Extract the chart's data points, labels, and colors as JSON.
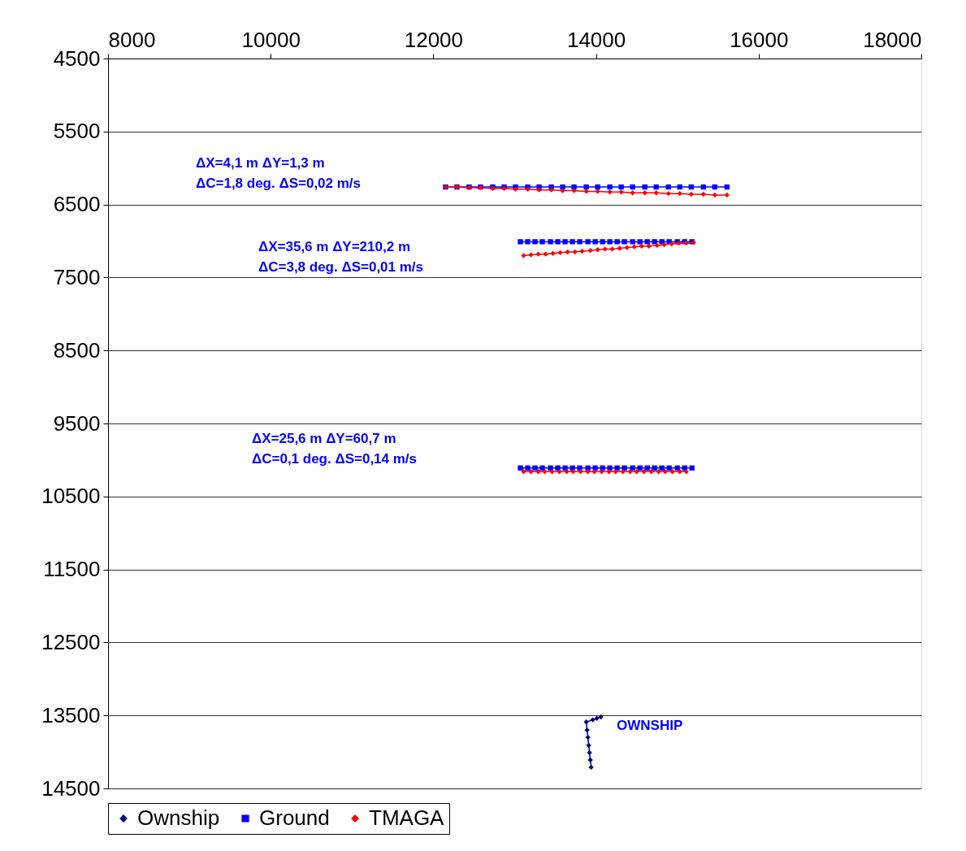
{
  "chart_data": {
    "type": "line",
    "xlim": [
      8000,
      18000
    ],
    "xticks": [
      8000,
      10000,
      12000,
      14000,
      16000,
      18000
    ],
    "ylim": [
      14500,
      4500
    ],
    "yticks": [
      4500,
      5500,
      6500,
      7500,
      8500,
      9500,
      10500,
      11500,
      12500,
      13500,
      14500
    ],
    "grid": "y",
    "legend": "bottom",
    "line_style": "solid",
    "series": [
      {
        "name": "Ownship",
        "color": "#000080",
        "marker": "diamond",
        "x": [
          13940,
          13930,
          13920,
          13910,
          13900,
          13890,
          13880,
          13960,
          14010,
          14060
        ],
        "values": [
          14210,
          14110,
          14010,
          13910,
          13800,
          13700,
          13590,
          13560,
          13540,
          13520
        ]
      },
      {
        "name": "Ground",
        "color": "#0000ff",
        "marker": "square",
        "x": [
          12150,
          12290,
          12440,
          12580,
          12730,
          12870,
          13010,
          13160,
          13300,
          13450,
          13590,
          13730,
          13880,
          14020,
          14170,
          14310,
          14450,
          14600,
          14740,
          14890,
          15030,
          15170,
          15320,
          15460,
          15610,
          null,
          13070,
          13160,
          13250,
          13340,
          13440,
          13530,
          13620,
          13710,
          13800,
          13900,
          13990,
          14080,
          14170,
          14260,
          14350,
          14450,
          14540,
          14630,
          14720,
          14810,
          14900,
          15000,
          15090,
          15180,
          null,
          13070,
          13160,
          13250,
          13340,
          13440,
          13530,
          13620,
          13710,
          13800,
          13900,
          13990,
          14080,
          14170,
          14260,
          14350,
          14450,
          14540,
          14630,
          14720,
          14810,
          14900,
          15000,
          15090,
          15180
        ],
        "values": [
          6260,
          6260,
          6260,
          6260,
          6260,
          6260,
          6260,
          6260,
          6260,
          6260,
          6260,
          6260,
          6260,
          6260,
          6260,
          6260,
          6260,
          6260,
          6260,
          6260,
          6260,
          6260,
          6260,
          6260,
          6260,
          null,
          7010,
          7010,
          7010,
          7010,
          7010,
          7010,
          7010,
          7010,
          7010,
          7010,
          7010,
          7010,
          7010,
          7010,
          7010,
          7010,
          7010,
          7010,
          7010,
          7010,
          7010,
          7010,
          7010,
          7010,
          null,
          10110,
          10110,
          10110,
          10110,
          10110,
          10110,
          10110,
          10110,
          10110,
          10110,
          10110,
          10110,
          10110,
          10110,
          10110,
          10110,
          10110,
          10110,
          10110,
          10110,
          10110,
          10110,
          10110,
          10110
        ]
      },
      {
        "name": "TMAGA",
        "color": "#ff0000",
        "marker": "diamond",
        "x": [
          12150,
          12290,
          12440,
          12580,
          12730,
          12870,
          13010,
          13160,
          13300,
          13450,
          13590,
          13730,
          13880,
          14020,
          14170,
          14310,
          14450,
          14600,
          14740,
          14890,
          15030,
          15170,
          15320,
          15460,
          15610,
          null,
          13110,
          13200,
          13290,
          13380,
          13470,
          13560,
          13650,
          13740,
          13830,
          13930,
          14020,
          14110,
          14200,
          14290,
          14380,
          14470,
          14560,
          14650,
          14750,
          14840,
          14930,
          15020,
          15110,
          15200,
          null,
          13110,
          13200,
          13290,
          13370,
          13460,
          13550,
          13640,
          13720,
          13810,
          13900,
          13980,
          14070,
          14160,
          14240,
          14330,
          14420,
          14500,
          14590,
          14680,
          14770,
          14850,
          14940,
          15030,
          15110
        ],
        "values": [
          6260,
          6260,
          6270,
          6270,
          6280,
          6280,
          6290,
          6290,
          6300,
          6300,
          6310,
          6310,
          6320,
          6320,
          6330,
          6330,
          6340,
          6340,
          6340,
          6350,
          6350,
          6360,
          6360,
          6370,
          6370,
          null,
          7200,
          7190,
          7180,
          7180,
          7170,
          7160,
          7150,
          7150,
          7140,
          7130,
          7120,
          7110,
          7110,
          7100,
          7090,
          7080,
          7070,
          7070,
          7060,
          7050,
          7040,
          7030,
          7030,
          7020,
          null,
          10160,
          10160,
          10160,
          10160,
          10160,
          10160,
          10160,
          10160,
          10160,
          10160,
          10160,
          10160,
          10160,
          10160,
          10160,
          10160,
          10160,
          10160,
          10160,
          10160,
          10160,
          10160,
          10160,
          10160
        ]
      }
    ],
    "annotations": [
      "ΔX=4,1 m      ΔY=1,3   m",
      "ΔC=1,8  deg.  ΔS=0,02 m/s",
      "ΔX=35,6 m      ΔY=210,2   m",
      "ΔC=3,8  deg.  ΔS=0,01 m/s",
      "ΔX=25,6 m      ΔY=60,7   m",
      "ΔC=0,1  deg.  ΔS=0,14 m/s",
      "OWNSHIP"
    ]
  }
}
